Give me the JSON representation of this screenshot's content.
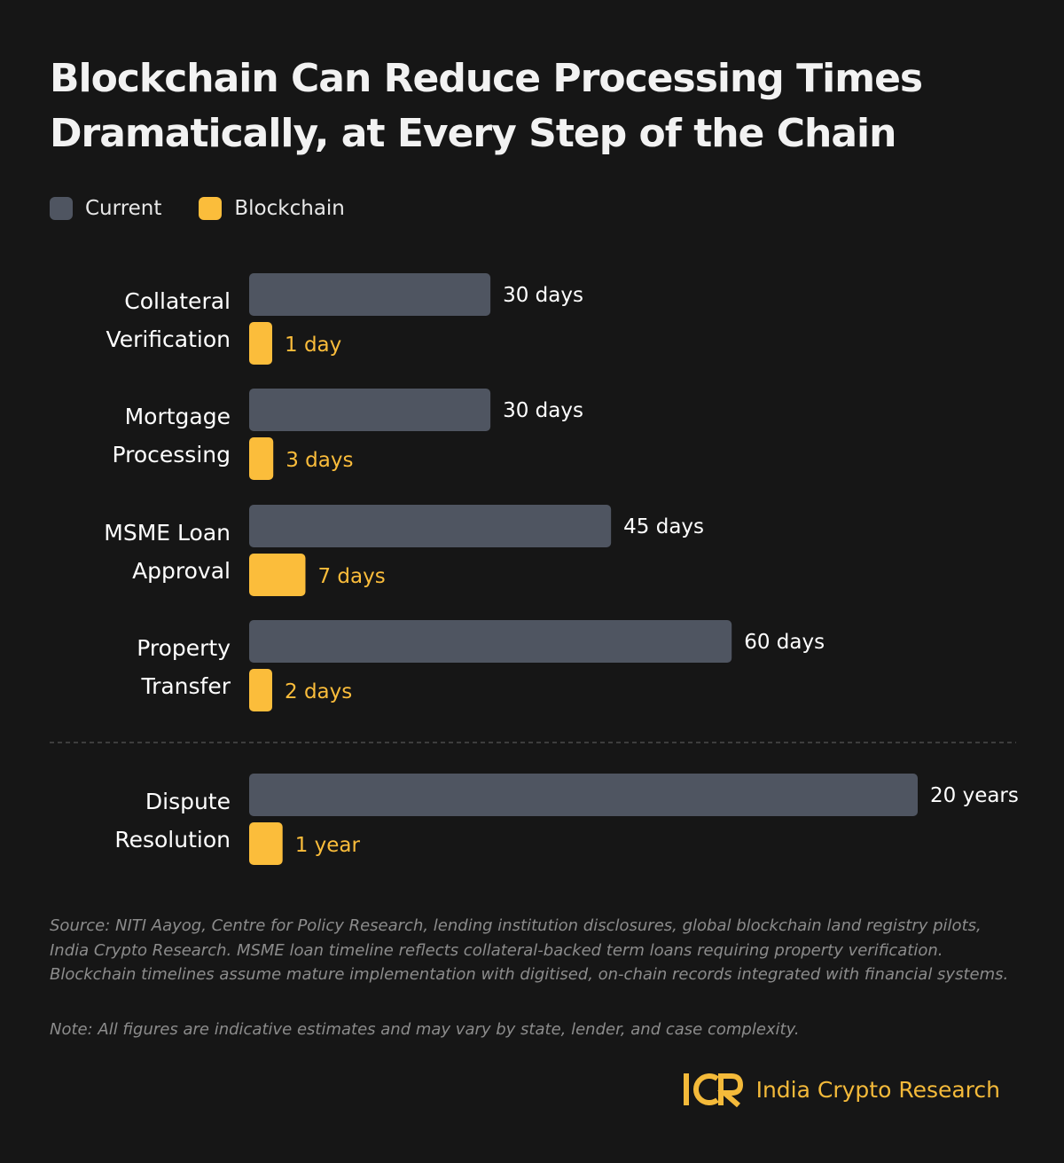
{
  "title": "Blockchain Can Reduce Processing Times Dramatically, at Every Step of the Chain",
  "colors": {
    "current": "#4f5561",
    "blockchain": "#fbbd3b",
    "background": "#161616",
    "brand": "#f4ba3a"
  },
  "legend": [
    {
      "label": "Current",
      "color": "#4f5561"
    },
    {
      "label": "Blockchain",
      "color": "#fbbd3b"
    }
  ],
  "chart_data": {
    "type": "bar",
    "orientation": "horizontal",
    "series": [
      {
        "name": "Current",
        "values": [
          30,
          30,
          45,
          60,
          7300
        ]
      },
      {
        "name": "Blockchain",
        "values": [
          1,
          3,
          7,
          2,
          365
        ]
      }
    ],
    "categories": [
      [
        "Collateral",
        "Verification"
      ],
      [
        "Mortgage",
        "Processing"
      ],
      [
        "MSME Loan",
        "Approval"
      ],
      [
        "Property",
        "Transfer"
      ],
      [
        "Dispute",
        "Resolution"
      ]
    ],
    "value_labels": [
      [
        "30 days",
        "1 day"
      ],
      [
        "30 days",
        "3 days"
      ],
      [
        "45 days",
        "7 days"
      ],
      [
        "60 days",
        "2 days"
      ],
      [
        "20 years",
        "1 year"
      ]
    ],
    "grid": false,
    "legend_position": "top-left"
  },
  "source": "Source: NITI Aayog, Centre for Policy Research, lending institution disclosures, global blockchain land registry pilots, India Crypto Research. MSME loan timeline reflects collateral-backed term loans requiring property verification. Blockchain timelines assume mature implementation with digitised, on-chain records integrated with financial systems.",
  "note": "Note: All figures are indicative estimates and may vary by state, lender, and case complexity.",
  "brand": {
    "name": "India Crypto Research",
    "logo_icon": "icr-logo-icon"
  }
}
